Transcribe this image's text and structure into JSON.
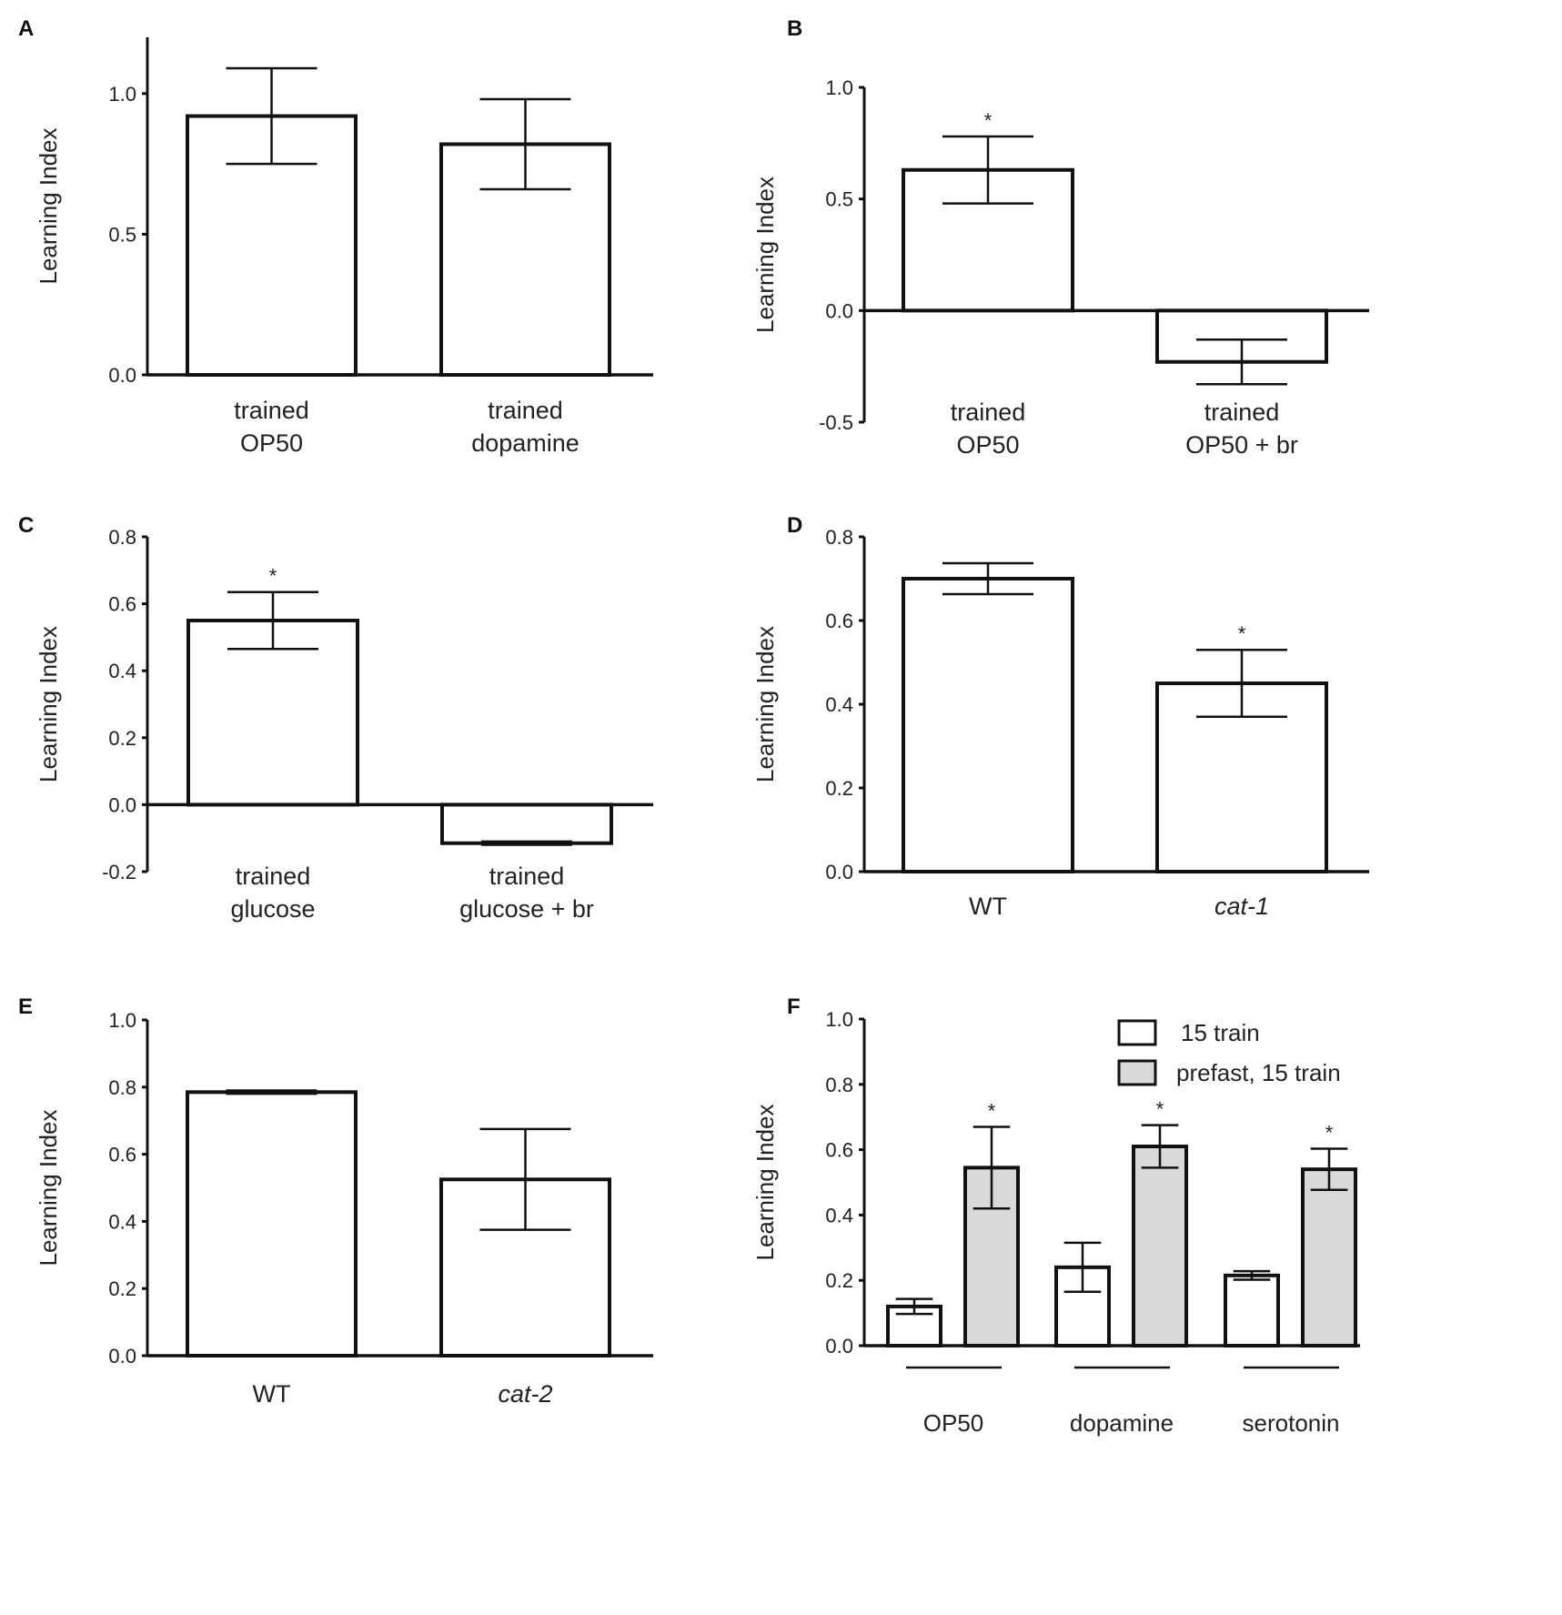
{
  "figure": {
    "chart_data": [
      {
        "panel": "A",
        "type": "bar",
        "ylabel": "Learning Index",
        "ylim": [
          0,
          1.2
        ],
        "yticks": [
          "1.0",
          "0.5",
          "0.0"
        ],
        "ytick_values": [
          1.0,
          0.5,
          0.0
        ],
        "categories": [
          [
            "trained",
            "OP50"
          ],
          [
            "trained",
            "dopamine"
          ]
        ],
        "values": [
          0.92,
          0.82
        ],
        "errors": [
          0.17,
          0.16
        ],
        "fills": [
          "#ffffff",
          "#ffffff"
        ],
        "stars": [
          "",
          ""
        ]
      },
      {
        "panel": "B",
        "type": "bar",
        "ylabel": "Learning Index",
        "ylim": [
          -0.5,
          1.0
        ],
        "yticks": [
          "1.0",
          "0.5",
          "0.0",
          "-0.5"
        ],
        "ytick_values": [
          1.0,
          0.5,
          0.0,
          -0.5
        ],
        "categories": [
          [
            "trained",
            "OP50"
          ],
          [
            "trained",
            "OP50 + br"
          ]
        ],
        "values": [
          0.63,
          -0.23
        ],
        "errors": [
          0.15,
          0.1
        ],
        "fills": [
          "#ffffff",
          "#ffffff"
        ],
        "stars": [
          "*",
          ""
        ]
      },
      {
        "panel": "C",
        "type": "bar",
        "ylabel": "Learning Index",
        "ylim": [
          -0.2,
          0.8
        ],
        "yticks": [
          "0.8",
          "0.6",
          "0.4",
          "0.2",
          "0.0",
          "-0.2"
        ],
        "ytick_values": [
          0.8,
          0.6,
          0.4,
          0.2,
          0.0,
          -0.2
        ],
        "categories": [
          [
            "trained",
            "glucose"
          ],
          [
            "trained",
            "glucose + br"
          ]
        ],
        "values": [
          0.55,
          -0.115
        ],
        "errors": [
          0.085,
          0.005
        ],
        "fills": [
          "#ffffff",
          "#ffffff"
        ],
        "stars": [
          "*",
          ""
        ]
      },
      {
        "panel": "D",
        "type": "bar",
        "ylabel": "Learning Index",
        "ylim": [
          0,
          0.8
        ],
        "yticks": [
          "0.8",
          "0.6",
          "0.4",
          "0.2",
          "0.0"
        ],
        "ytick_values": [
          0.8,
          0.6,
          0.4,
          0.2,
          0.0
        ],
        "categories": [
          [
            "WT"
          ],
          [
            "cat-1"
          ]
        ],
        "category_italic": [
          false,
          true
        ],
        "values": [
          0.7,
          0.45
        ],
        "errors": [
          0.037,
          0.08
        ],
        "fills": [
          "#ffffff",
          "#ffffff"
        ],
        "stars": [
          "",
          "*"
        ]
      },
      {
        "panel": "E",
        "type": "bar",
        "ylabel": "Learning Index",
        "ylim": [
          0,
          1.0
        ],
        "yticks": [
          "1.0",
          "0.8",
          "0.6",
          "0.4",
          "0.2",
          "0.0"
        ],
        "ytick_values": [
          1.0,
          0.8,
          0.6,
          0.4,
          0.2,
          0.0
        ],
        "categories": [
          [
            "WT"
          ],
          [
            "cat-2"
          ]
        ],
        "category_italic": [
          false,
          true
        ],
        "values": [
          0.785,
          0.525
        ],
        "errors": [
          0.005,
          0.15
        ],
        "fills": [
          "#ffffff",
          "#ffffff"
        ],
        "stars": [
          "",
          ""
        ]
      },
      {
        "panel": "F",
        "type": "bar",
        "ylabel": "Learning Index",
        "ylim": [
          0,
          1.0
        ],
        "yticks": [
          "1.0",
          "0.8",
          "0.6",
          "0.4",
          "0.2",
          "0.0"
        ],
        "ytick_values": [
          1.0,
          0.8,
          0.6,
          0.4,
          0.2,
          0.0
        ],
        "categories": [
          [
            "OP50"
          ],
          [
            "dopamine"
          ],
          [
            "serotonin"
          ]
        ],
        "series": [
          {
            "name": "15 train",
            "values": [
              0.12,
              0.24,
              0.215
            ],
            "errors": [
              0.023,
              0.075,
              0.013
            ],
            "color": "#ffffff",
            "stars": [
              "",
              "",
              ""
            ]
          },
          {
            "name": "prefast, 15 train",
            "values": [
              0.545,
              0.61,
              0.54
            ],
            "errors": [
              0.125,
              0.065,
              0.063
            ],
            "color": "#d9d9d9",
            "stars": [
              "*",
              "*",
              "*"
            ]
          }
        ],
        "legend": "top-right"
      }
    ]
  }
}
